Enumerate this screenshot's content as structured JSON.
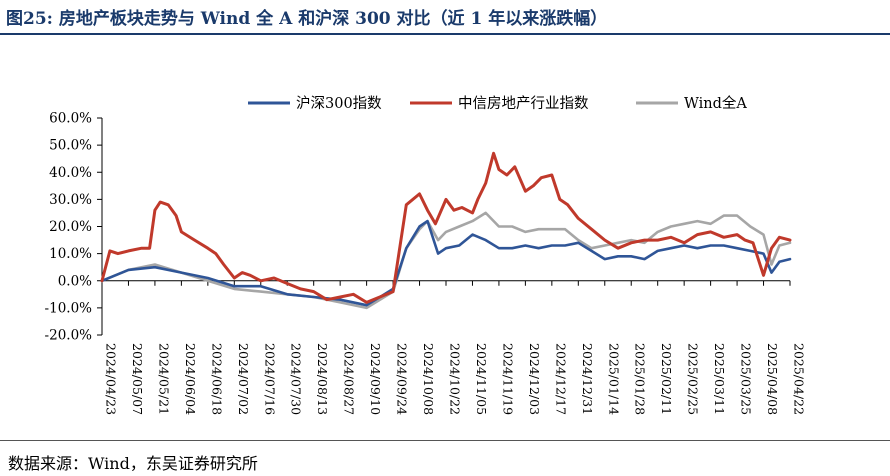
{
  "title": "图25:  房地产板块走势与 Wind 全 A 和沪深 300 对比（近 1 年以来涨跌幅）",
  "source": "数据来源：Wind，东吴证券研究所",
  "colors": {
    "hs300": "#2f5597",
    "realestate": "#c0392b",
    "winda": "#a6a6a6"
  },
  "chart_data": {
    "type": "line",
    "ylim": [
      -20,
      60
    ],
    "yticks": [
      -20,
      -10,
      0,
      10,
      20,
      30,
      40,
      50,
      60
    ],
    "ytick_labels": [
      "-20.0%",
      "-10.0%",
      "0.0%",
      "10.0%",
      "20.0%",
      "30.0%",
      "40.0%",
      "50.0%",
      "60.0%"
    ],
    "xtick_labels": [
      "2024/04/23",
      "2024/05/07",
      "2024/05/21",
      "2024/06/04",
      "2024/06/18",
      "2024/07/02",
      "2024/07/16",
      "2024/07/30",
      "2024/08/13",
      "2024/08/27",
      "2024/09/10",
      "2024/09/24",
      "2024/10/08",
      "2024/10/22",
      "2024/11/05",
      "2024/11/19",
      "2024/12/03",
      "2024/12/17",
      "2024/12/31",
      "2025/01/14",
      "2025/01/28",
      "2025/02/11",
      "2025/02/25",
      "2025/03/11",
      "2025/03/25",
      "2025/04/08",
      "2025/04/22"
    ],
    "series": [
      {
        "name": "沪深300指数",
        "key": "hs300",
        "x": [
          0,
          1,
          2,
          3,
          4,
          5,
          6,
          7,
          8,
          9,
          10,
          11,
          11.5,
          12,
          12.3,
          12.7,
          13,
          13.5,
          14,
          14.5,
          15,
          15.5,
          16,
          16.5,
          17,
          17.5,
          18,
          18.5,
          19,
          19.5,
          20,
          20.5,
          21,
          21.5,
          22,
          22.5,
          23,
          23.5,
          24,
          24.5,
          25,
          25.3,
          25.6,
          26
        ],
        "values": [
          0,
          4,
          5,
          3,
          1,
          -2,
          -2,
          -5,
          -6,
          -7,
          -9,
          -3,
          12,
          20,
          22,
          10,
          12,
          13,
          17,
          15,
          12,
          12,
          13,
          12,
          13,
          13,
          14,
          11,
          8,
          9,
          9,
          8,
          11,
          12,
          13,
          12,
          13,
          13,
          12,
          11,
          10,
          3,
          7,
          8
        ]
      },
      {
        "name": "中信房地产行业指数",
        "key": "realestate",
        "x": [
          0,
          0.3,
          0.6,
          1,
          1.5,
          1.8,
          2,
          2.2,
          2.5,
          2.8,
          3,
          3.5,
          4,
          4.3,
          4.6,
          5,
          5.3,
          5.6,
          6,
          6.5,
          7,
          7.5,
          8,
          8.5,
          9,
          9.5,
          10,
          10.5,
          11,
          11.5,
          12,
          12.3,
          12.6,
          13,
          13.3,
          13.6,
          14,
          14.2,
          14.5,
          14.8,
          15,
          15.3,
          15.6,
          16,
          16.3,
          16.6,
          17,
          17.3,
          17.6,
          18,
          18.5,
          19,
          19.5,
          20,
          20.5,
          21,
          21.5,
          22,
          22.5,
          23,
          23.5,
          24,
          24.3,
          24.6,
          25,
          25.3,
          25.6,
          26
        ],
        "values": [
          0,
          11,
          10,
          11,
          12,
          12,
          26,
          29,
          28,
          24,
          18,
          15,
          12,
          10,
          6,
          1,
          3,
          2,
          0,
          1,
          -1,
          -3,
          -4,
          -7,
          -6,
          -5,
          -8,
          -6,
          -4,
          28,
          32,
          26,
          21,
          30,
          26,
          27,
          25,
          30,
          36,
          47,
          41,
          39,
          42,
          33,
          35,
          38,
          39,
          30,
          28,
          23,
          19,
          15,
          12,
          14,
          15,
          15,
          16,
          14,
          17,
          18,
          16,
          17,
          15,
          14,
          2,
          12,
          16,
          15
        ]
      },
      {
        "name": "Wind全A",
        "key": "winda",
        "x": [
          0,
          1,
          2,
          3,
          4,
          5,
          6,
          7,
          8,
          9,
          10,
          11,
          11.5,
          12,
          12.3,
          12.7,
          13,
          13.5,
          14,
          14.5,
          15,
          15.5,
          16,
          16.5,
          17,
          17.5,
          18,
          18.5,
          19,
          19.5,
          20,
          20.5,
          21,
          21.5,
          22,
          22.5,
          23,
          23.5,
          24,
          24.5,
          25,
          25.3,
          25.6,
          26
        ],
        "values": [
          0,
          4,
          6,
          3,
          0,
          -3,
          -4,
          -5,
          -6,
          -8,
          -10,
          -4,
          12,
          19,
          22,
          15,
          18,
          20,
          22,
          25,
          20,
          20,
          18,
          19,
          19,
          19,
          15,
          12,
          13,
          14,
          15,
          14,
          18,
          20,
          21,
          22,
          21,
          24,
          24,
          20,
          17,
          6,
          13,
          14
        ]
      }
    ]
  }
}
